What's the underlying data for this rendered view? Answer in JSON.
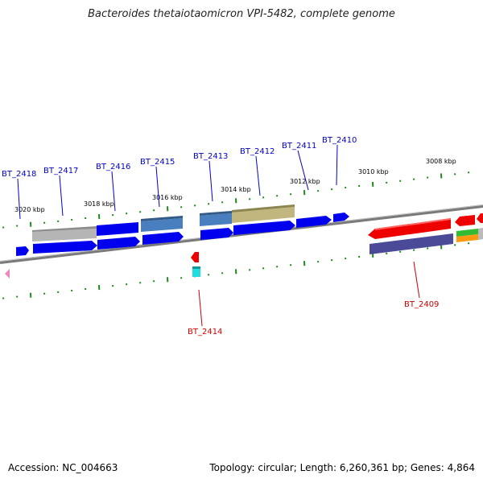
{
  "title": "Bacteroides thetaiotaomicron VPI-5482, complete genome",
  "footer": {
    "accession": "Accession: NC_004663",
    "topology": "Topology: circular; Length: 6,260,361 bp; Genes: 4,864"
  },
  "colors": {
    "forward_label": "#0000cc",
    "reverse_label": "#cc0000",
    "tick": "#228822",
    "backbone": "#777777"
  },
  "kbp_labels": [
    "3020 kbp",
    "3018 kbp",
    "3016 kbp",
    "3014 kbp",
    "3012 kbp",
    "3010 kbp",
    "3008 kbp"
  ],
  "genes_forward": [
    {
      "id": "BT_2418"
    },
    {
      "id": "BT_2417"
    },
    {
      "id": "BT_2416"
    },
    {
      "id": "BT_2415"
    },
    {
      "id": "BT_2413"
    },
    {
      "id": "BT_2412"
    },
    {
      "id": "BT_2411"
    },
    {
      "id": "BT_2410"
    }
  ],
  "genes_reverse": [
    {
      "id": "BT_2414"
    },
    {
      "id": "BT_2409"
    }
  ]
}
